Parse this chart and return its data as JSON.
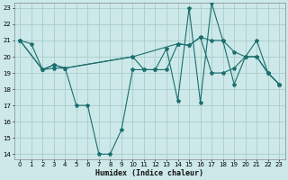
{
  "xlabel": "Humidex (Indice chaleur)",
  "bg_color": "#cce8e8",
  "grid_color": "#aacccc",
  "line_color": "#1a6e6e",
  "xlim": [
    0,
    23
  ],
  "ylim": [
    14,
    23
  ],
  "xticks": [
    0,
    1,
    2,
    3,
    4,
    5,
    6,
    7,
    8,
    9,
    10,
    11,
    12,
    13,
    14,
    15,
    16,
    17,
    18,
    19,
    20,
    21,
    22,
    23
  ],
  "yticks": [
    14,
    15,
    16,
    17,
    18,
    19,
    20,
    21,
    22,
    23
  ],
  "series": [
    {
      "x": [
        0,
        1,
        2,
        3,
        4,
        5,
        6,
        7,
        8,
        9,
        10,
        11,
        12,
        13,
        14,
        15,
        16,
        17,
        18,
        19,
        20,
        21,
        22,
        23
      ],
      "y": [
        21,
        20.8,
        19.2,
        19.3,
        19.3,
        17.0,
        17.0,
        14.0,
        14.0,
        15.5,
        19.2,
        19.2,
        19.2,
        20.5,
        17.3,
        23.0,
        17.2,
        23.3,
        21.0,
        18.3,
        20.0,
        21.0,
        19.0,
        18.3
      ]
    },
    {
      "x": [
        0,
        2,
        3,
        4,
        10,
        11,
        12,
        13,
        14,
        15,
        16,
        17,
        18,
        19,
        20,
        21,
        22,
        23
      ],
      "y": [
        21,
        19.2,
        19.5,
        19.3,
        20.0,
        19.2,
        19.2,
        19.2,
        20.8,
        20.7,
        21.2,
        21.0,
        21.0,
        20.3,
        20.0,
        20.0,
        19.0,
        18.3
      ]
    },
    {
      "x": [
        0,
        2,
        3,
        4,
        10,
        14,
        15,
        16,
        17,
        18,
        19,
        20,
        21,
        22,
        23
      ],
      "y": [
        21,
        19.2,
        19.5,
        19.3,
        20.0,
        20.8,
        20.7,
        21.2,
        19.0,
        19.0,
        19.3,
        20.0,
        20.0,
        19.0,
        18.3
      ]
    }
  ]
}
